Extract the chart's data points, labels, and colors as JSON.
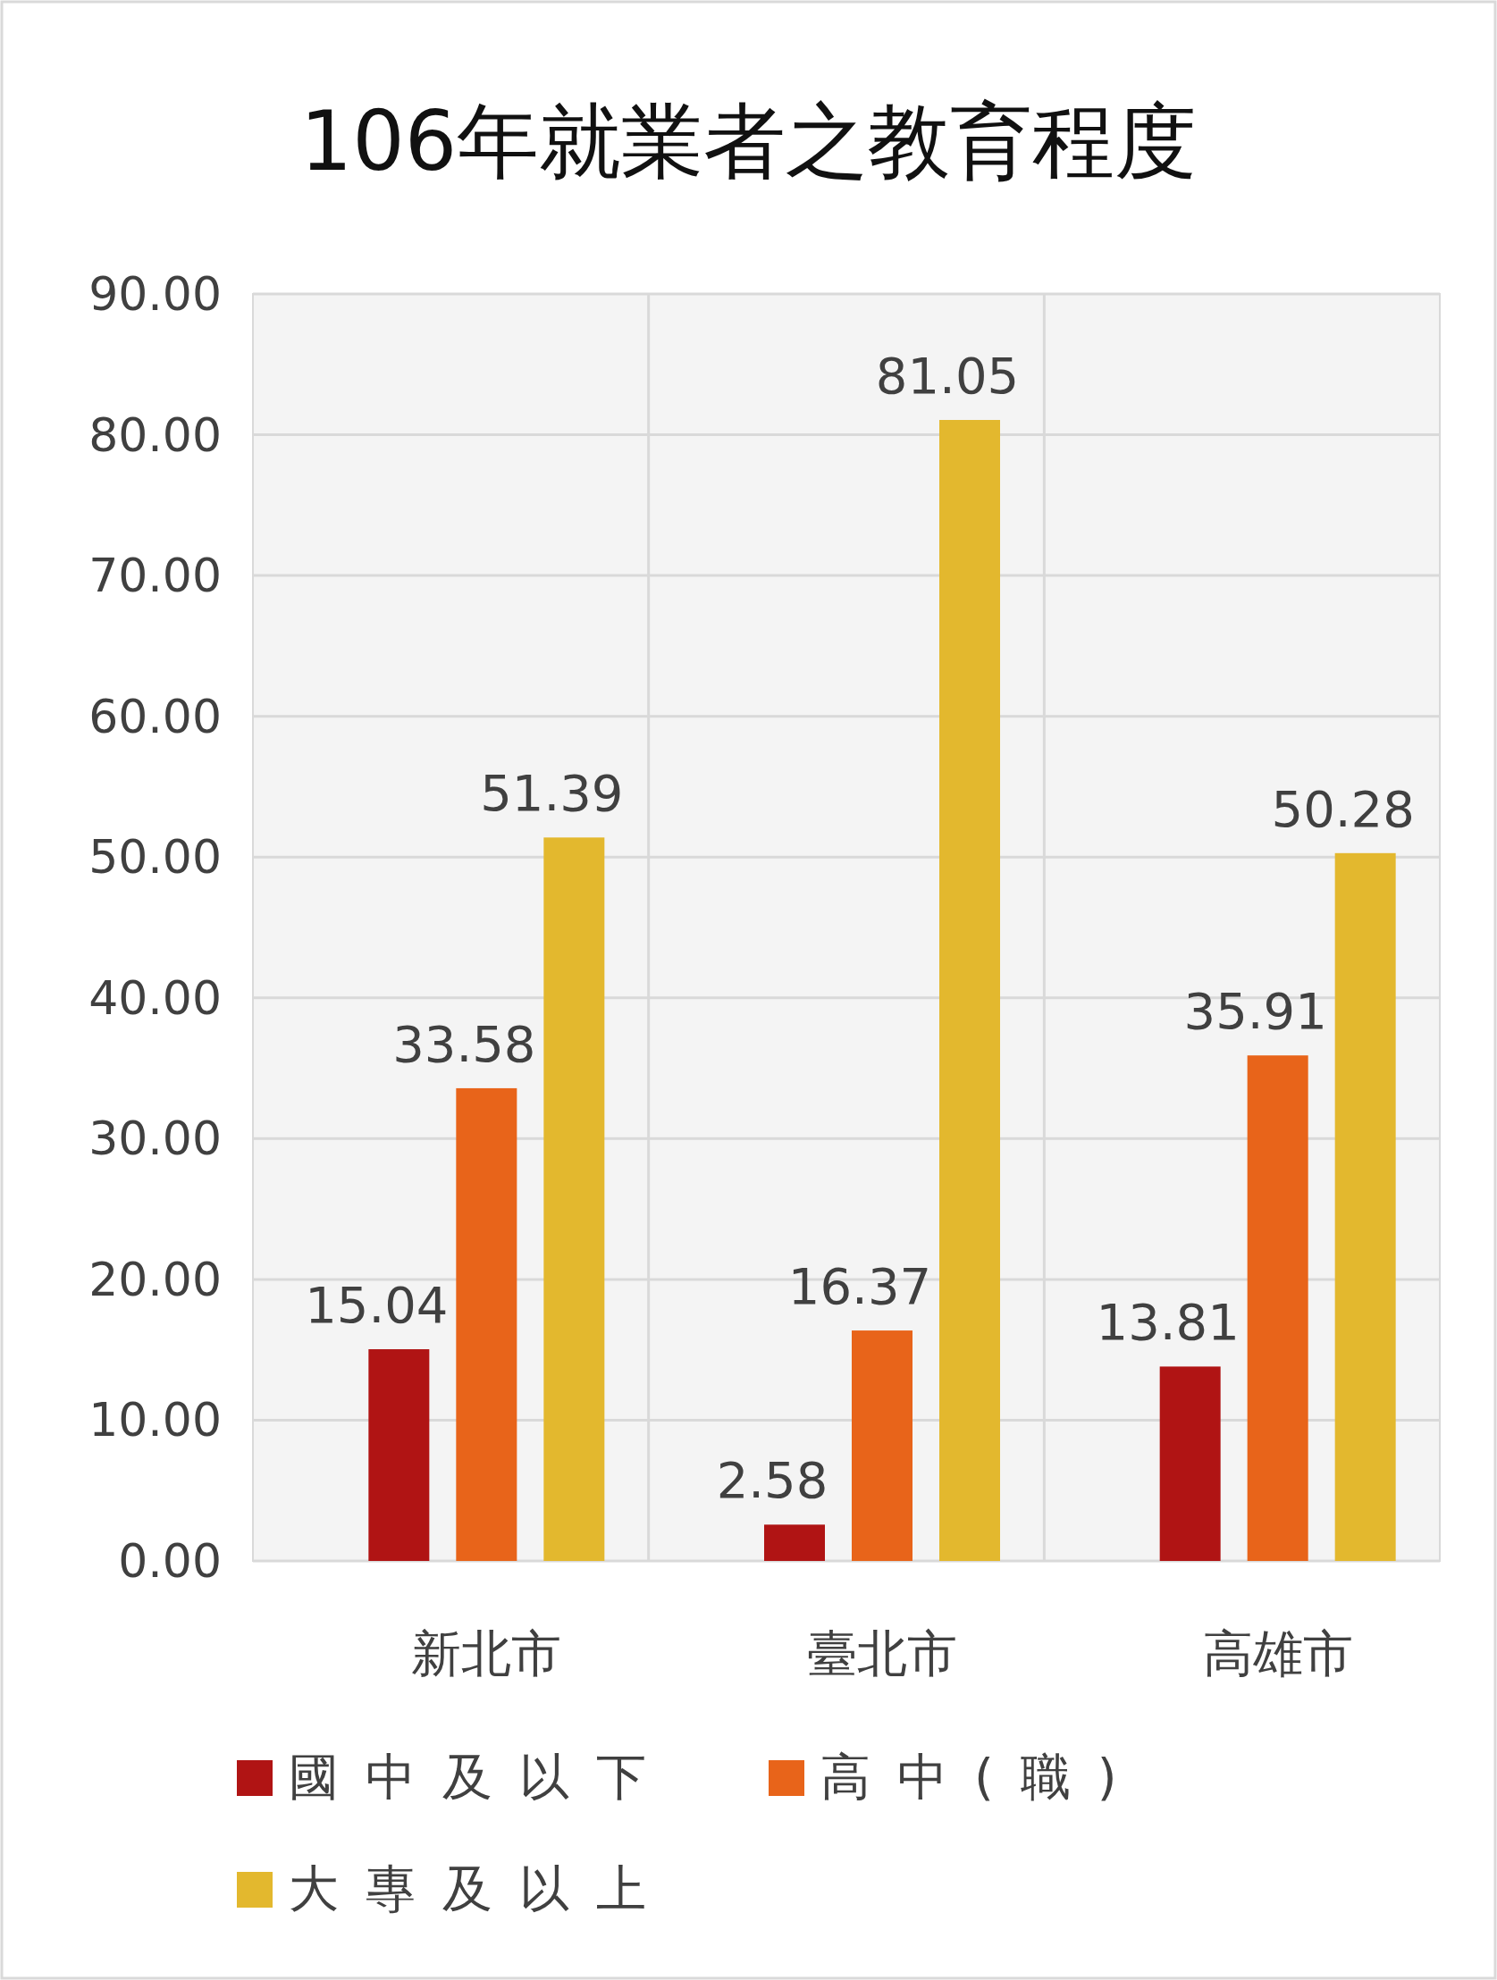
{
  "chart_data": {
    "type": "bar",
    "title": "106年就業者之教育程度",
    "categories": [
      "新北市",
      "臺北市",
      "高雄市"
    ],
    "series": [
      {
        "name": "國中及以下",
        "color": "#b01414",
        "values": [
          15.04,
          2.58,
          13.81
        ]
      },
      {
        "name": "高中(職)",
        "color": "#e8641a",
        "values": [
          33.58,
          16.37,
          35.91
        ]
      },
      {
        "name": "大專及以上",
        "color": "#e3b82e",
        "values": [
          51.39,
          81.05,
          50.28
        ]
      }
    ],
    "ylim": [
      0,
      90
    ],
    "yticks": [
      {
        "value": 0,
        "label": "0.00"
      },
      {
        "value": 10,
        "label": "10.00"
      },
      {
        "value": 20,
        "label": "20.00"
      },
      {
        "value": 30,
        "label": "30.00"
      },
      {
        "value": 40,
        "label": "40.00"
      },
      {
        "value": 50,
        "label": "50.00"
      },
      {
        "value": 60,
        "label": "60.00"
      },
      {
        "value": 70,
        "label": "70.00"
      },
      {
        "value": 80,
        "label": "80.00"
      },
      {
        "value": 90,
        "label": "90.00"
      }
    ],
    "grid": true,
    "data_labels": true,
    "legend": "bottom"
  }
}
